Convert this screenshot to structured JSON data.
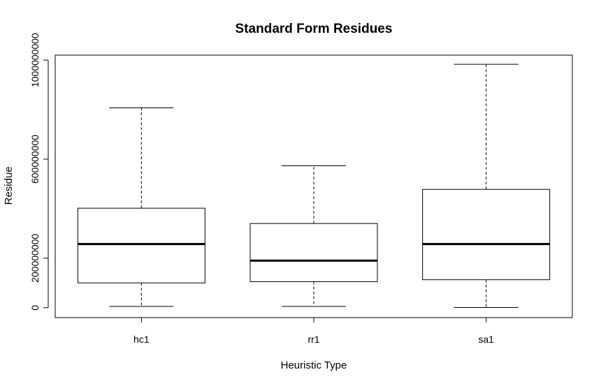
{
  "chart_data": {
    "type": "boxplot",
    "title": "Standard Form Residues",
    "xlabel": "Heuristic Type",
    "ylabel": "Residue",
    "categories": [
      "hc1",
      "rr1",
      "sa1"
    ],
    "boxes": [
      {
        "name": "hc1",
        "min": 5000000,
        "q1": 100000000,
        "median": 257000000,
        "q3": 402000000,
        "max": 807000000
      },
      {
        "name": "rr1",
        "min": 5000000,
        "q1": 105000000,
        "median": 190000000,
        "q3": 340000000,
        "max": 573000000
      },
      {
        "name": "sa1",
        "min": 1000000,
        "q1": 113000000,
        "median": 257000000,
        "q3": 478000000,
        "max": 983000000
      }
    ],
    "yticks": [
      0,
      200000000,
      600000000,
      1000000000
    ],
    "ytick_labels": [
      "0",
      "200000000",
      "600000000",
      "1000000000"
    ],
    "ylim": [
      -40000000,
      1020000000
    ],
    "grid": false,
    "legend": "none"
  }
}
